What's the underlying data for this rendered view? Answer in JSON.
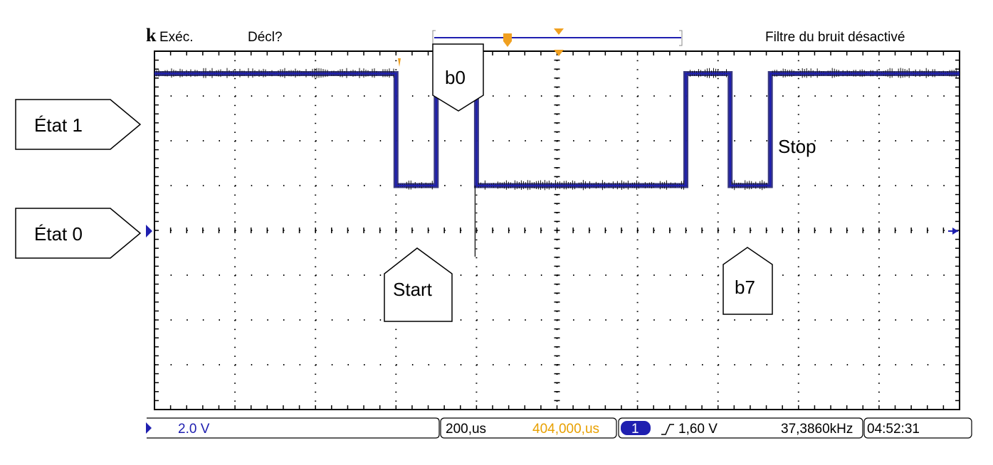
{
  "header": {
    "brand_glyph": "k",
    "mode": "Exéc.",
    "trigger_state": "Décl?",
    "noise_filter": "Filtre du bruit désactivé"
  },
  "callouts": {
    "state_high": "État 1",
    "state_low": "État 0",
    "start": "Start",
    "b0": "b0",
    "b7": "b7",
    "stop": "Stop"
  },
  "status_bar": {
    "channel_number": "1",
    "volts_per_div": "2.0 V",
    "time_per_div": "200,us",
    "trigger_position": "404,000,us",
    "trigger_level": "1,60 V",
    "trigger_slope_icon": "rising-edge-icon",
    "frequency": "37,3860kHz",
    "clock": "04:52:31"
  },
  "colors": {
    "trace": "#1f1fb0",
    "trigger_marker": "#f0a020",
    "grid": "#000000",
    "status_orange": "#e8a000"
  },
  "chart_data": {
    "type": "line",
    "title": "",
    "xlabel": "",
    "ylabel": "",
    "x_unit": "µs",
    "y_unit": "V",
    "time_per_div_us": 200,
    "volts_per_div": 2.0,
    "xlim": [
      0,
      2000
    ],
    "ylim": [
      -10,
      6
    ],
    "grid": true,
    "series": [
      {
        "values_x": [
          0,
          600,
          600,
          700,
          700,
          800,
          800,
          1320,
          1320,
          1430,
          1430,
          1530,
          1530,
          2000
        ],
        "values_y": [
          5,
          5,
          0,
          0,
          5,
          5,
          0,
          0,
          5,
          5,
          0,
          0,
          5,
          5
        ]
      }
    ]
  }
}
